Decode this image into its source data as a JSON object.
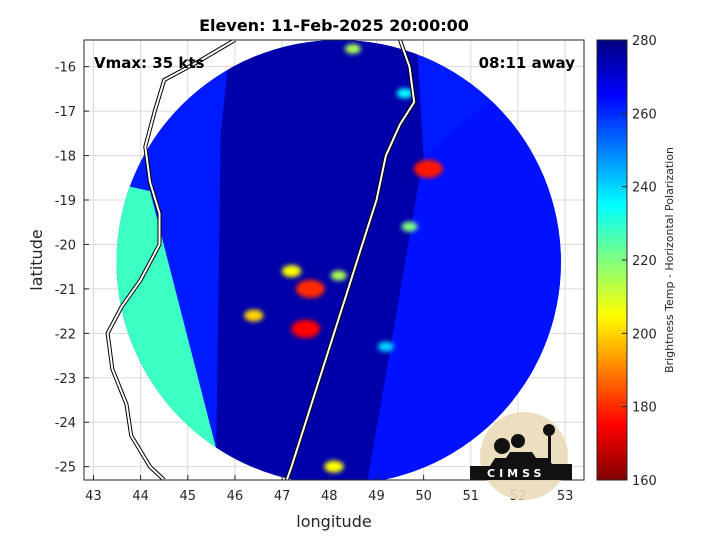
{
  "chart_data": {
    "type": "heatmap",
    "title": "Eleven: 11-Feb-2025 20:00:00",
    "xlabel": "longitude",
    "ylabel": "latitude",
    "xlim": [
      42.8,
      53.4
    ],
    "ylim": [
      -25.3,
      -15.4
    ],
    "xticks": [
      "43",
      "44",
      "45",
      "46",
      "47",
      "48",
      "49",
      "50",
      "51",
      "52",
      "53"
    ],
    "yticks": [
      "-16",
      "-17",
      "-18",
      "-19",
      "-20",
      "-21",
      "-22",
      "-23",
      "-24",
      "-25"
    ],
    "grid": true,
    "annotations": {
      "vmax": "Vmax: 35 kts",
      "time_away": "08:11 away"
    },
    "colorbar": {
      "label": "Brightness Temp - Horizontal Polarization",
      "range": [
        160,
        280
      ],
      "ticks": [
        "280",
        "260",
        "240",
        "220",
        "200",
        "180",
        "160"
      ],
      "colormap": "jet"
    },
    "field": {
      "center": [
        48.2,
        -20.4
      ],
      "radius_deg_lat": 5.0,
      "swaths": {
        "west_light": 228,
        "west_mid": 262,
        "central_dark": 275,
        "east_mid": 263
      },
      "features": [
        {
          "lon": 47.5,
          "lat": -21.9,
          "value": 175
        },
        {
          "lon": 47.6,
          "lat": -21.0,
          "value": 180
        },
        {
          "lon": 50.1,
          "lat": -18.3,
          "value": 178
        },
        {
          "lon": 46.4,
          "lat": -21.6,
          "value": 200
        },
        {
          "lon": 47.2,
          "lat": -20.6,
          "value": 205
        },
        {
          "lon": 48.2,
          "lat": -20.7,
          "value": 215
        },
        {
          "lon": 48.1,
          "lat": -25.0,
          "value": 205
        },
        {
          "lon": 48.5,
          "lat": -15.6,
          "value": 215
        },
        {
          "lon": 49.7,
          "lat": -19.6,
          "value": 220
        },
        {
          "lon": 49.6,
          "lat": -16.6,
          "value": 235
        },
        {
          "lon": 49.2,
          "lat": -22.3,
          "value": 240
        }
      ]
    }
  },
  "logo": {
    "text": "CIMSS"
  }
}
